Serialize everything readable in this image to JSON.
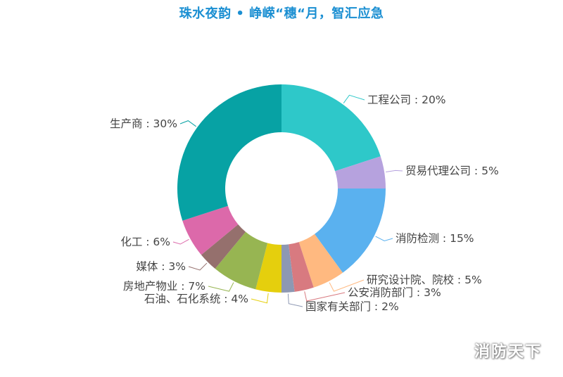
{
  "title": "珠水夜韵 • 峥嵘“穗“月，智汇应急",
  "watermark": "消防天下",
  "chart_data": {
    "type": "pie",
    "donut": true,
    "title": "珠水夜韵 • 峥嵘“穗“月，智汇应急",
    "slices": [
      {
        "label": "工程公司",
        "value": 20,
        "display": "工程公司 : 20%",
        "color": "#2ec8c9"
      },
      {
        "label": "贸易代理公司",
        "value": 5,
        "display": "贸易代理公司 : 5%",
        "color": "#b6a2de"
      },
      {
        "label": "消防检测",
        "value": 15,
        "display": "消防检测 : 15%",
        "color": "#5ab1ef"
      },
      {
        "label": "研究设计院、院校",
        "value": 5,
        "display": "研究设计院、院校 : 5%",
        "color": "#ffb980"
      },
      {
        "label": "公安消防部门",
        "value": 3,
        "display": "公安消防部门 : 3%",
        "color": "#d87a80"
      },
      {
        "label": "国家有关部门",
        "value": 2,
        "display": "国家有关部门 : 2%",
        "color": "#8d98b3"
      },
      {
        "label": "石油、石化系统",
        "value": 4,
        "display": "石油、石化系统 : 4%",
        "color": "#e5cf0d"
      },
      {
        "label": "房地产物业",
        "value": 7,
        "display": "房地产物业 : 7%",
        "color": "#97b552"
      },
      {
        "label": "媒体",
        "value": 3,
        "display": "媒体 : 3%",
        "color": "#95706d"
      },
      {
        "label": "化工",
        "value": 6,
        "display": "化工 : 6%",
        "color": "#dc69aa"
      },
      {
        "label": "生产商",
        "value": 30,
        "display": "生产商 : 30%",
        "color": "#07a2a4"
      }
    ]
  }
}
